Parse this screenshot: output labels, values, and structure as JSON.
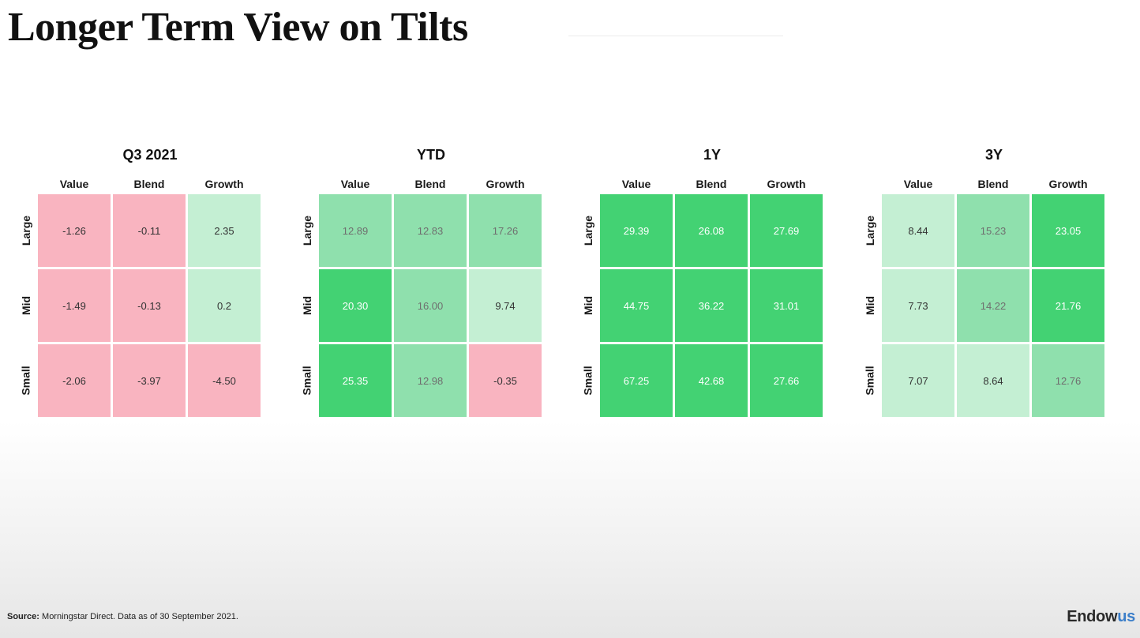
{
  "title": "Longer Term View on Tilts",
  "colors": {
    "negative": "#f9b4c0",
    "positive_light": "#c4efd3",
    "positive_mid": "#8fe0ad",
    "positive_strong": "#43d273"
  },
  "chart_data": [
    {
      "type": "heatmap",
      "title": "Q3 2021",
      "columns": [
        "Value",
        "Blend",
        "Growth"
      ],
      "rows": [
        "Large",
        "Mid",
        "Small"
      ],
      "values": [
        [
          -1.26,
          -0.11,
          2.35
        ],
        [
          -1.49,
          -0.13,
          0.2
        ],
        [
          -2.06,
          -3.97,
          -4.5
        ]
      ],
      "labels": [
        [
          "-1.26",
          "-0.11",
          "2.35"
        ],
        [
          "-1.49",
          "-0.13",
          "0.2"
        ],
        [
          "-2.06",
          "-3.97",
          "-4.50"
        ]
      ]
    },
    {
      "type": "heatmap",
      "title": "YTD",
      "columns": [
        "Value",
        "Blend",
        "Growth"
      ],
      "rows": [
        "Large",
        "Mid",
        "Small"
      ],
      "values": [
        [
          12.89,
          12.83,
          17.26
        ],
        [
          20.3,
          16.0,
          9.74
        ],
        [
          25.35,
          12.98,
          -0.35
        ]
      ],
      "labels": [
        [
          "12.89",
          "12.83",
          "17.26"
        ],
        [
          "20.30",
          "16.00",
          "9.74"
        ],
        [
          "25.35",
          "12.98",
          "-0.35"
        ]
      ]
    },
    {
      "type": "heatmap",
      "title": "1Y",
      "columns": [
        "Value",
        "Blend",
        "Growth"
      ],
      "rows": [
        "Large",
        "Mid",
        "Small"
      ],
      "values": [
        [
          29.39,
          26.08,
          27.69
        ],
        [
          44.75,
          36.22,
          31.01
        ],
        [
          67.25,
          42.68,
          27.66
        ]
      ],
      "labels": [
        [
          "29.39",
          "26.08",
          "27.69"
        ],
        [
          "44.75",
          "36.22",
          "31.01"
        ],
        [
          "67.25",
          "42.68",
          "27.66"
        ]
      ]
    },
    {
      "type": "heatmap",
      "title": "3Y",
      "columns": [
        "Value",
        "Blend",
        "Growth"
      ],
      "rows": [
        "Large",
        "Mid",
        "Small"
      ],
      "values": [
        [
          8.44,
          15.23,
          23.05
        ],
        [
          7.73,
          14.22,
          21.76
        ],
        [
          7.07,
          8.64,
          12.76
        ]
      ],
      "labels": [
        [
          "8.44",
          "15.23",
          "23.05"
        ],
        [
          "7.73",
          "14.22",
          "21.76"
        ],
        [
          "7.07",
          "8.64",
          "12.76"
        ]
      ]
    }
  ],
  "footer": {
    "source_label": "Source:",
    "source_text": " Morningstar Direct. Data as of 30 September 2021.",
    "logo_main": "Endow",
    "logo_accent": "us"
  }
}
